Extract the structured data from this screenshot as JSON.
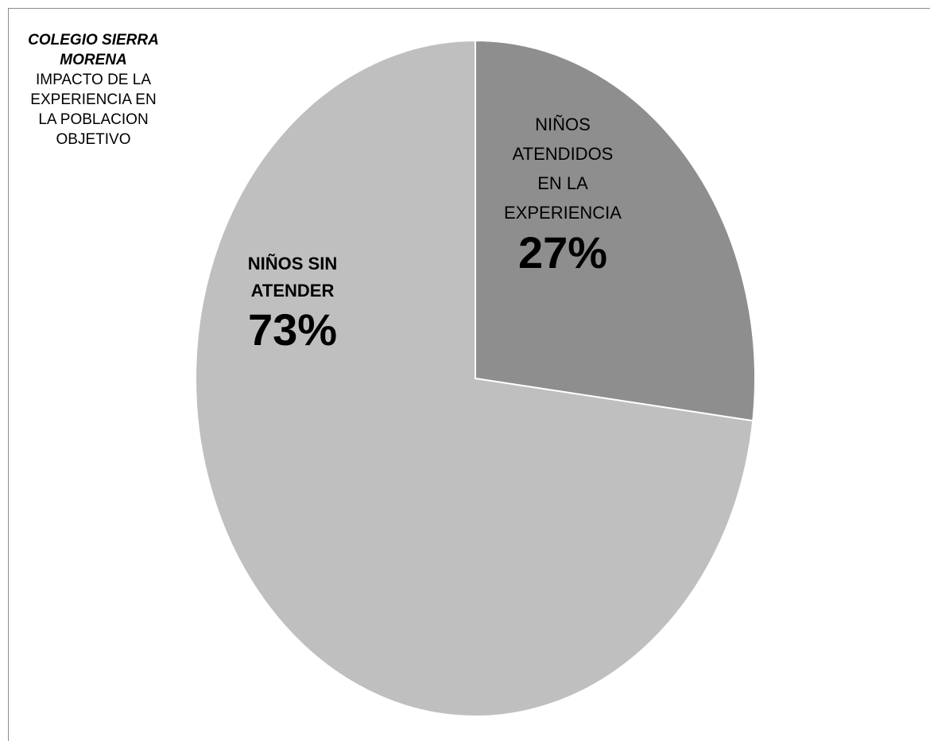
{
  "title": {
    "line1": "COLEGIO SIERRA\nMORENA",
    "line2": "IMPACTO DE LA\nEXPERIENCIA  EN\nLA POBLACION\nOBJETIVO"
  },
  "colors": {
    "attended": "#8e8e8e",
    "not_attended": "#bfbfbf",
    "separator": "#ffffff"
  },
  "chart_data": {
    "type": "pie",
    "title": "COLEGIO SIERRA MORENA IMPACTO DE LA EXPERIENCIA  EN LA POBLACION OBJETIVO",
    "categories": [
      "NIÑOS ATENDIDOS EN LA EXPERIENCIA",
      "NIÑOS SIN ATENDER"
    ],
    "values": [
      27,
      73
    ],
    "labels": [
      {
        "name": "NIÑOS\nATENDIDOS\nEN LA\nEXPERIENCIA",
        "percent": "27%"
      },
      {
        "name": "NIÑOS SIN\nATENDER",
        "percent": "73%"
      }
    ],
    "start": "12 o'clock",
    "direction": "clockwise",
    "legend": "none"
  }
}
